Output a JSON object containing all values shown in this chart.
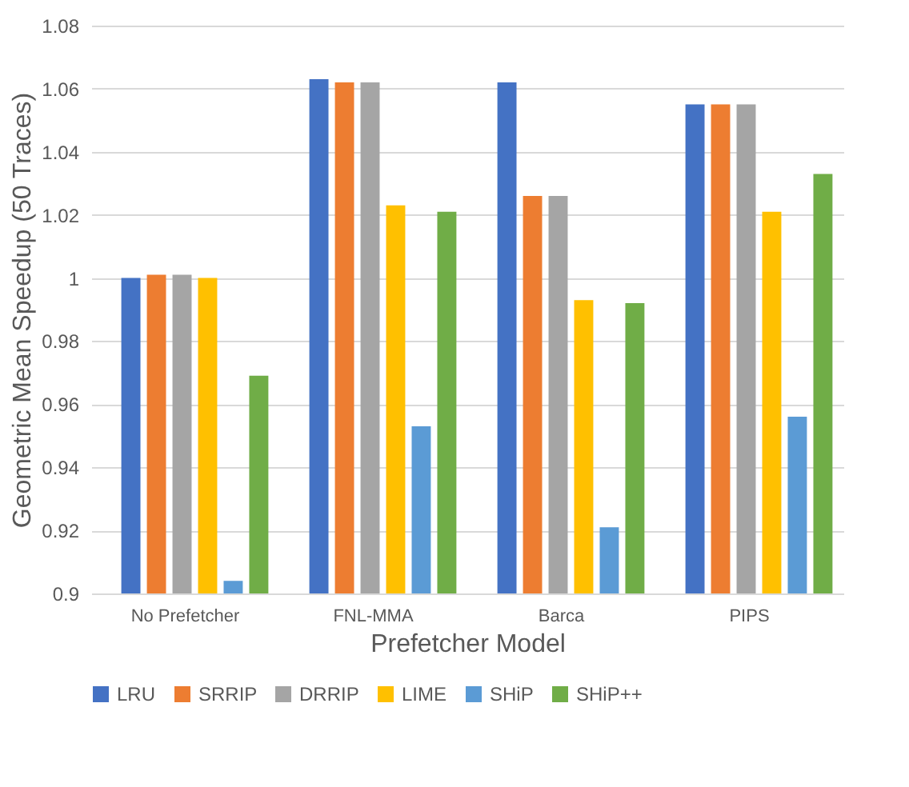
{
  "chart_data": {
    "type": "bar",
    "categories": [
      "No Prefetcher",
      "FNL-MMA",
      "Barca",
      "PIPS"
    ],
    "series": [
      {
        "name": "LRU",
        "color": "#4472c4",
        "values": [
          1.0,
          1.063,
          1.062,
          1.055
        ]
      },
      {
        "name": "SRRIP",
        "color": "#ed7d31",
        "values": [
          1.001,
          1.062,
          1.026,
          1.055
        ]
      },
      {
        "name": "DRRIP",
        "color": "#a5a5a5",
        "values": [
          1.001,
          1.062,
          1.026,
          1.055
        ]
      },
      {
        "name": "LIME",
        "color": "#ffc000",
        "values": [
          1.0,
          1.023,
          0.993,
          1.021
        ]
      },
      {
        "name": "SHiP",
        "color": "#5b9bd5",
        "values": [
          0.904,
          0.953,
          0.921,
          0.956
        ]
      },
      {
        "name": "SHiP++",
        "color": "#70ad47",
        "values": [
          0.969,
          1.021,
          0.992,
          1.033
        ]
      }
    ],
    "xlabel": "Prefetcher Model",
    "ylabel": "Geometric Mean Speedup (50 Traces)",
    "ylim": [
      0.9,
      1.08
    ],
    "yticks": [
      {
        "value": 0.9,
        "label": "0.9"
      },
      0.92,
      0.94,
      0.96,
      0.98,
      {
        "value": 1,
        "label": "1"
      },
      1.02,
      1.04,
      1.06,
      1.08
    ],
    "grid": "y",
    "legend": "bottom"
  }
}
